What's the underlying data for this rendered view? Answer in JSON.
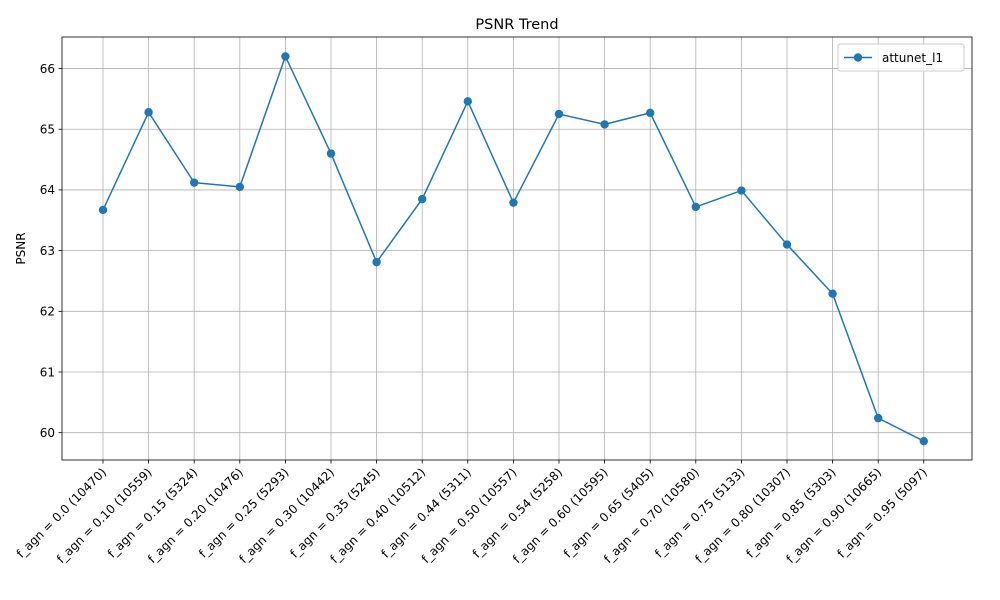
{
  "chart_data": {
    "type": "line",
    "title": "PSNR Trend",
    "xlabel": "",
    "ylabel": "PSNR",
    "ylim": [
      59.55,
      66.52
    ],
    "yticks": [
      60,
      61,
      62,
      63,
      64,
      65,
      66
    ],
    "grid": true,
    "legend": "top-right",
    "categories": [
      "f_agn = 0.0 (10470)",
      "f_agn = 0.10 (10559)",
      "f_agn = 0.15 (5324)",
      "f_agn = 0.20 (10476)",
      "f_agn = 0.25 (5293)",
      "f_agn = 0.30 (10442)",
      "f_agn = 0.35 (5245)",
      "f_agn = 0.40 (10512)",
      "f_agn = 0.44 (5311)",
      "f_agn = 0.50 (10557)",
      "f_agn = 0.54 (5258)",
      "f_agn = 0.60 (10595)",
      "f_agn = 0.65 (5405)",
      "f_agn = 0.70 (10580)",
      "f_agn = 0.75 (5133)",
      "f_agn = 0.80 (10307)",
      "f_agn = 0.85 (5303)",
      "f_agn = 0.90 (10665)",
      "f_agn = 0.95 (5097)"
    ],
    "series": [
      {
        "name": "attunet_l1",
        "color": "#1f77b4",
        "marker": "circle",
        "values": [
          63.67,
          65.28,
          64.12,
          64.05,
          66.2,
          64.6,
          62.81,
          63.85,
          65.46,
          63.79,
          65.25,
          65.08,
          65.27,
          63.72,
          63.99,
          63.1,
          62.29,
          60.24,
          59.86
        ]
      }
    ]
  }
}
